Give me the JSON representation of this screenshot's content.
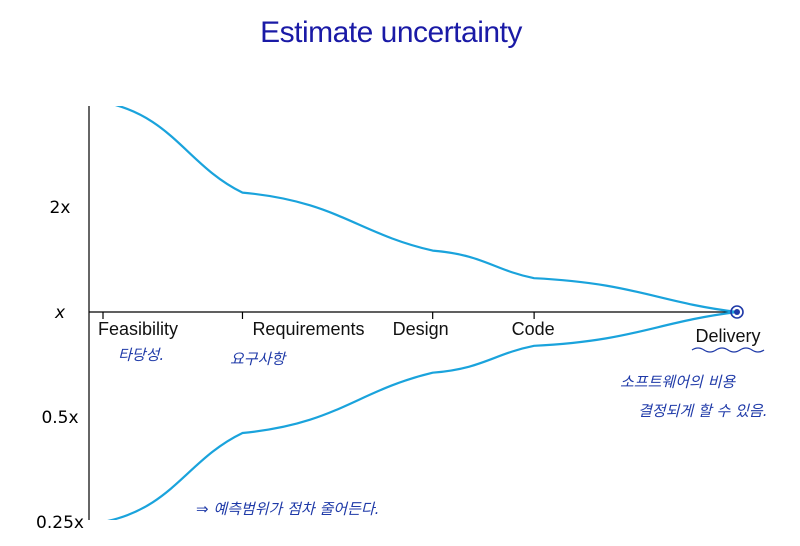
{
  "title": "Estimate uncertainty",
  "chart_data": {
    "type": "line",
    "title": "Estimate uncertainty",
    "y_ticks": [
      {
        "label": "2x",
        "value": 2
      },
      {
        "label": "x",
        "value": 1
      },
      {
        "label": "0.5x",
        "value": 0.5
      },
      {
        "label": "0.25x",
        "value": 0.25
      }
    ],
    "phases": [
      {
        "label": "Feasibility",
        "pos": 0.0
      },
      {
        "label": "Requirements",
        "pos": 0.22
      },
      {
        "label": "Design",
        "pos": 0.52
      },
      {
        "label": "Code",
        "pos": 0.68
      },
      {
        "label": "Delivery",
        "pos": 1.0
      }
    ],
    "series": [
      {
        "values": [
          4,
          2.2,
          1.5,
          1.25,
          1.0
        ]
      },
      {
        "values": [
          0.25,
          0.45,
          0.67,
          0.8,
          1.0
        ]
      }
    ],
    "line_color": "#1aa3dc"
  },
  "notes": {
    "feasibility": "타당성.",
    "requirements": "요구사항",
    "delivery_line1": "소프트웨어의 비용",
    "delivery_line2": "결정되게 할 수 있음.",
    "bottom": "⇒ 예측범위가 점차 줄어든다."
  }
}
